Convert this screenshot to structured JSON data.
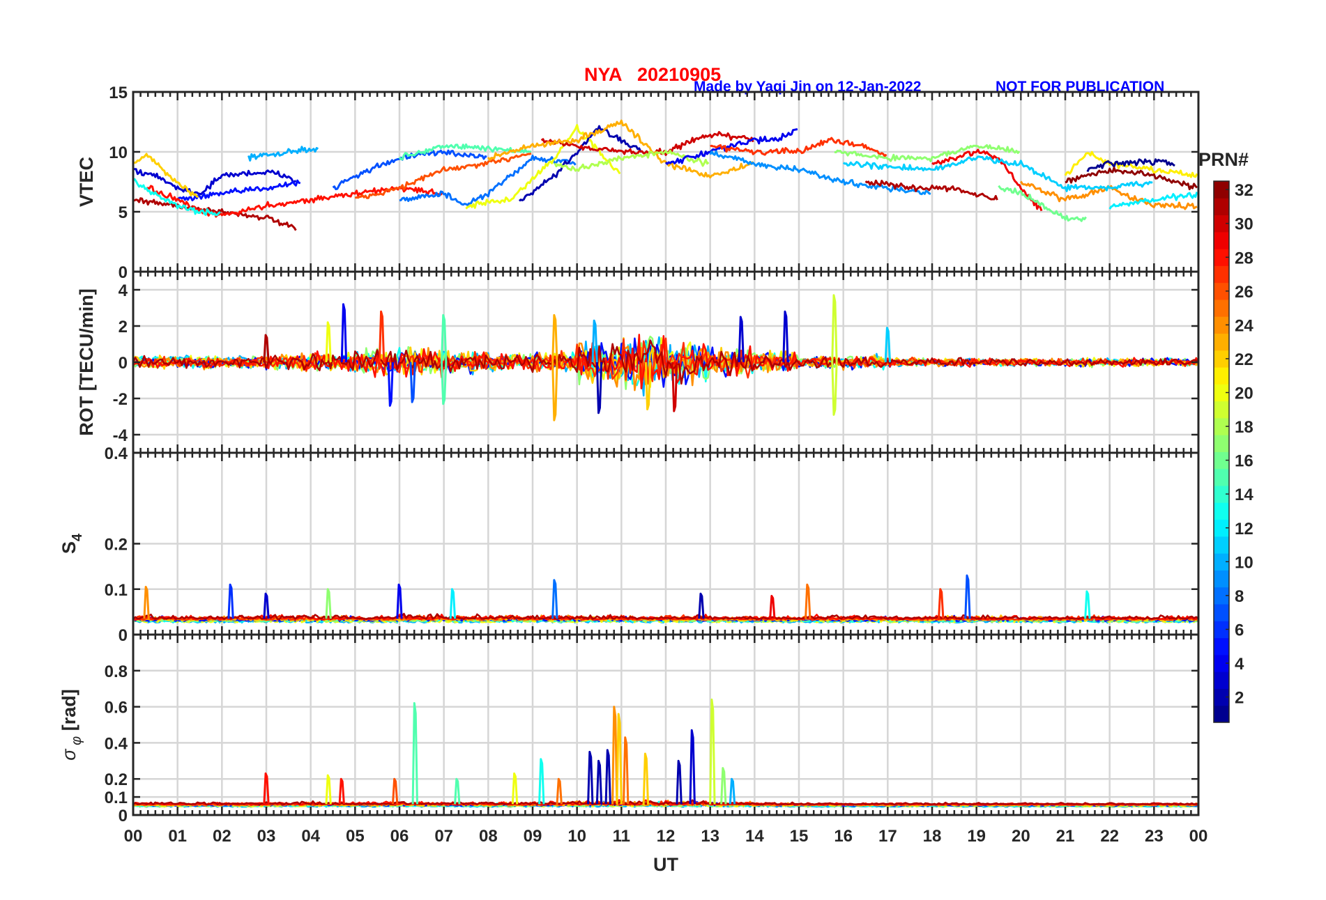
{
  "chart_data": {
    "type": "line",
    "title": "NYA   20210905",
    "credit": "Made by Yaqi Jin on 12-Jan-2022",
    "notice": "NOT FOR PUBLICATION",
    "xlabel": "UT",
    "xlim": [
      0,
      24
    ],
    "xticks": [
      "00",
      "01",
      "02",
      "03",
      "04",
      "05",
      "06",
      "07",
      "08",
      "09",
      "10",
      "11",
      "12",
      "13",
      "14",
      "15",
      "16",
      "17",
      "18",
      "19",
      "20",
      "21",
      "22",
      "23",
      "00"
    ],
    "grid": true,
    "colorbar": {
      "label": "PRN#",
      "range": [
        1,
        32
      ],
      "ticks": [
        2,
        4,
        6,
        8,
        10,
        12,
        14,
        16,
        18,
        20,
        22,
        24,
        26,
        28,
        30,
        32
      ],
      "colormap": "jet",
      "placement": "right"
    },
    "panels": [
      {
        "id": "vtec",
        "ylabel": "VTEC",
        "ylim": [
          0,
          15
        ],
        "yticks": [
          {
            "v": 0,
            "t": "0"
          },
          {
            "v": 5,
            "t": "5"
          },
          {
            "v": 10,
            "t": "10"
          },
          {
            "v": 15,
            "t": "15"
          }
        ],
        "series": [
          {
            "prn": 10,
            "x": [
              2.6,
              3,
              3.5,
              3.8,
              4.2
            ],
            "y": [
              9.6,
              9.7,
              10.0,
              10.2,
              10.1
            ]
          },
          {
            "prn": 3,
            "x": [
              0,
              0.5,
              1,
              1.5,
              2,
              2.5,
              3,
              3.5,
              3.7
            ],
            "y": [
              8.5,
              8,
              7,
              6.5,
              8,
              8.2,
              8.3,
              8,
              7.5
            ]
          },
          {
            "prn": 5,
            "x": [
              1,
              2,
              3,
              3.8
            ],
            "y": [
              6,
              6.5,
              7,
              7.5
            ]
          },
          {
            "prn": 31,
            "x": [
              0,
              1,
              2,
              3,
              3.7
            ],
            "y": [
              6,
              5.5,
              5,
              4.5,
              3.5
            ]
          },
          {
            "prn": 28,
            "x": [
              0.3,
              1,
              1.5,
              2,
              3,
              4,
              5,
              6,
              7
            ],
            "y": [
              7,
              6,
              5,
              4.7,
              5.5,
              6,
              6.5,
              7,
              6.5
            ]
          },
          {
            "prn": 22,
            "x": [
              0,
              0.3,
              0.8,
              1.5
            ],
            "y": [
              9,
              9.8,
              8,
              6
            ]
          },
          {
            "prn": 13,
            "x": [
              0,
              0.5,
              1,
              1.5,
              2
            ],
            "y": [
              7.5,
              6.5,
              5.5,
              5,
              4.8
            ]
          },
          {
            "prn": 7,
            "x": [
              4.5,
              5,
              6,
              7,
              8
            ],
            "y": [
              7,
              8,
              9.5,
              10,
              9.5
            ]
          },
          {
            "prn": 15,
            "x": [
              6,
              7,
              8,
              9
            ],
            "y": [
              9.5,
              10.5,
              10.3,
              10
            ]
          },
          {
            "prn": 26,
            "x": [
              5,
              6,
              7,
              8,
              9
            ],
            "y": [
              6,
              7,
              8.5,
              9,
              10
            ]
          },
          {
            "prn": 8,
            "x": [
              6,
              7,
              7.5,
              8,
              9,
              10
            ],
            "y": [
              6,
              6.5,
              5.5,
              6.5,
              9.5,
              9
            ]
          },
          {
            "prn": 20,
            "x": [
              7.5,
              8.5,
              9.5,
              10,
              11
            ],
            "y": [
              5.5,
              6,
              9.5,
              12,
              8
            ]
          },
          {
            "prn": 2,
            "x": [
              8.7,
              9.5,
              10,
              10.5,
              11,
              11.5
            ],
            "y": [
              5.8,
              8,
              10,
              12,
              11,
              10
            ]
          },
          {
            "prn": 30,
            "x": [
              9.2,
              10,
              11,
              12,
              13,
              14
            ],
            "y": [
              11,
              10.5,
              10,
              10,
              11.5,
              11
            ]
          },
          {
            "prn": 23,
            "x": [
              8,
              9,
              10,
              11,
              12,
              13,
              14
            ],
            "y": [
              9.5,
              10.5,
              11,
              12.5,
              9,
              8,
              9
            ]
          },
          {
            "prn": 18,
            "x": [
              9.5,
              10,
              11,
              12,
              13
            ],
            "y": [
              9,
              8.5,
              9.5,
              10,
              9
            ]
          },
          {
            "prn": 4,
            "x": [
              12,
              13,
              14,
              14.5,
              15
            ],
            "y": [
              9,
              10,
              11,
              11,
              12
            ]
          },
          {
            "prn": 27,
            "x": [
              13,
              14,
              15,
              15.7,
              16.5,
              17
            ],
            "y": [
              10.5,
              10,
              10,
              11,
              10.5,
              9.5
            ]
          },
          {
            "prn": 9,
            "x": [
              13,
              14,
              15,
              16,
              17,
              18
            ],
            "y": [
              10,
              9,
              8.5,
              7.5,
              7,
              6.5
            ]
          },
          {
            "prn": 17,
            "x": [
              15.8,
              17,
              18,
              19,
              20
            ],
            "y": [
              10,
              9.5,
              9.5,
              10.5,
              10
            ]
          },
          {
            "prn": 29,
            "x": [
              18,
              19,
              19.5,
              20,
              20.5
            ],
            "y": [
              9,
              10,
              9.5,
              7,
              5
            ]
          },
          {
            "prn": 31,
            "x": [
              16.5,
              17.5,
              18.5,
              19.5
            ],
            "y": [
              7.5,
              7,
              7,
              6
            ]
          },
          {
            "prn": 16,
            "x": [
              19.5,
              20,
              21,
              21.5
            ],
            "y": [
              7,
              6.5,
              4.5,
              4.3
            ]
          },
          {
            "prn": 21,
            "x": [
              21,
              21.5,
              22,
              23,
              24
            ],
            "y": [
              8,
              10,
              9,
              8.5,
              8
            ]
          },
          {
            "prn": 1,
            "x": [
              21.5,
              22,
              23,
              23.5
            ],
            "y": [
              8.5,
              9,
              9.2,
              9
            ]
          },
          {
            "prn": 32,
            "x": [
              21,
              22,
              23,
              24
            ],
            "y": [
              7.5,
              8.5,
              8,
              7
            ]
          },
          {
            "prn": 24,
            "x": [
              20,
              21,
              22,
              23,
              24
            ],
            "y": [
              7.5,
              6,
              7,
              5.5,
              5.5
            ]
          },
          {
            "prn": 12,
            "x": [
              22,
              23,
              24
            ],
            "y": [
              5.5,
              6,
              6.5
            ]
          },
          {
            "prn": 11,
            "x": [
              16,
              18,
              19,
              20,
              21,
              22,
              23
            ],
            "y": [
              9,
              8.5,
              9.5,
              9,
              7,
              7,
              7.5
            ]
          }
        ]
      },
      {
        "id": "rot",
        "ylabel": "ROT [TECU/min]",
        "ylim": [
          -5,
          5
        ],
        "yticks": [
          {
            "v": -4,
            "t": "-4"
          },
          {
            "v": -2,
            "t": "-2"
          },
          {
            "v": 0,
            "t": "0"
          },
          {
            "v": 2,
            "t": "2"
          },
          {
            "v": 4,
            "t": "4"
          }
        ],
        "baseline": 0,
        "hourly_amplitude": [
          0.5,
          0.5,
          0.4,
          0.6,
          0.7,
          1.0,
          1.0,
          0.8,
          0.6,
          0.7,
          1.5,
          2.0,
          1.5,
          1.0,
          0.8,
          0.4,
          0.5,
          0.3,
          0.3,
          0.3,
          0.3,
          0.3,
          0.3,
          0.3
        ],
        "spikes": [
          {
            "x": 4.75,
            "y": 3.2,
            "prn": 4
          },
          {
            "x": 5.6,
            "y": 2.8,
            "prn": 27
          },
          {
            "x": 9.5,
            "y": 2.6,
            "prn": 23
          },
          {
            "x": 9.5,
            "y": -3.2,
            "prn": 23
          },
          {
            "x": 10.5,
            "y": -2.8,
            "prn": 2
          },
          {
            "x": 15.8,
            "y": 3.7,
            "prn": 19
          },
          {
            "x": 15.8,
            "y": -2.9,
            "prn": 19
          },
          {
            "x": 14.7,
            "y": 2.8,
            "prn": 3
          },
          {
            "x": 4.4,
            "y": 2.2,
            "prn": 20
          },
          {
            "x": 6.3,
            "y": -2.2,
            "prn": 7
          },
          {
            "x": 12.2,
            "y": -2.7,
            "prn": 30
          },
          {
            "x": 17,
            "y": 1.9,
            "prn": 11
          },
          {
            "x": 7,
            "y": 2.6,
            "prn": 15
          },
          {
            "x": 7,
            "y": -2.3,
            "prn": 15
          },
          {
            "x": 5.8,
            "y": -2.4,
            "prn": 5
          },
          {
            "x": 13.7,
            "y": 2.5,
            "prn": 3
          },
          {
            "x": 3,
            "y": 1.5,
            "prn": 31
          },
          {
            "x": 10.4,
            "y": 2.3,
            "prn": 10
          },
          {
            "x": 11.6,
            "y": -2.6,
            "prn": 22
          }
        ]
      },
      {
        "id": "s4",
        "ylabel": "S",
        "ylabel_sub": "4",
        "ylim": [
          0,
          0.4
        ],
        "yticks": [
          {
            "v": 0,
            "t": "0"
          },
          {
            "v": 0.1,
            "t": "0.1"
          },
          {
            "v": 0.2,
            "t": "0.2"
          },
          {
            "v": 0.4,
            "t": "0.4"
          }
        ],
        "baseline": 0.035,
        "hourly_amplitude": [
          0.015,
          0.012,
          0.015,
          0.018,
          0.015,
          0.012,
          0.018,
          0.015,
          0.015,
          0.018,
          0.015,
          0.015,
          0.015,
          0.012,
          0.012,
          0.015,
          0.015,
          0.012,
          0.015,
          0.015,
          0.012,
          0.015,
          0.012,
          0.012
        ],
        "spikes": [
          {
            "x": 2.2,
            "y": 0.11,
            "prn": 6
          },
          {
            "x": 6.0,
            "y": 0.11,
            "prn": 4
          },
          {
            "x": 9.5,
            "y": 0.12,
            "prn": 8
          },
          {
            "x": 15.2,
            "y": 0.11,
            "prn": 25
          },
          {
            "x": 18.8,
            "y": 0.13,
            "prn": 7
          },
          {
            "x": 18.2,
            "y": 0.1,
            "prn": 27
          },
          {
            "x": 0.3,
            "y": 0.105,
            "prn": 24
          },
          {
            "x": 21.5,
            "y": 0.095,
            "prn": 13
          },
          {
            "x": 7.2,
            "y": 0.1,
            "prn": 12
          },
          {
            "x": 12.8,
            "y": 0.09,
            "prn": 2
          },
          {
            "x": 4.4,
            "y": 0.1,
            "prn": 17
          },
          {
            "x": 3,
            "y": 0.09,
            "prn": 3
          },
          {
            "x": 14.4,
            "y": 0.085,
            "prn": 29
          }
        ]
      },
      {
        "id": "sigma_phi",
        "ylabel": "σ",
        "ylabel_sub": "φ",
        "ylabel_unit": "[rad]",
        "ylim": [
          0,
          1
        ],
        "yticks": [
          {
            "v": 0,
            "t": "0"
          },
          {
            "v": 0.1,
            "t": "0.1"
          },
          {
            "v": 0.2,
            "t": "0.2"
          },
          {
            "v": 0.4,
            "t": "0.4"
          },
          {
            "v": 0.6,
            "t": "0.6"
          },
          {
            "v": 0.8,
            "t": "0.8"
          }
        ],
        "baseline": 0.06,
        "hourly_amplitude": [
          0.02,
          0.02,
          0.02,
          0.025,
          0.025,
          0.025,
          0.025,
          0.025,
          0.025,
          0.03,
          0.04,
          0.04,
          0.035,
          0.03,
          0.02,
          0.015,
          0.015,
          0.015,
          0.015,
          0.015,
          0.015,
          0.015,
          0.015,
          0.015
        ],
        "spikes": [
          {
            "x": 6.35,
            "y": 0.62,
            "prn": 15
          },
          {
            "x": 10.85,
            "y": 0.6,
            "prn": 24
          },
          {
            "x": 10.95,
            "y": 0.56,
            "prn": 22
          },
          {
            "x": 11.1,
            "y": 0.43,
            "prn": 25
          },
          {
            "x": 12.6,
            "y": 0.47,
            "prn": 3
          },
          {
            "x": 13.05,
            "y": 0.64,
            "prn": 19
          },
          {
            "x": 11.55,
            "y": 0.34,
            "prn": 22
          },
          {
            "x": 10.3,
            "y": 0.35,
            "prn": 2
          },
          {
            "x": 10.7,
            "y": 0.36,
            "prn": 2
          },
          {
            "x": 9.2,
            "y": 0.31,
            "prn": 13
          },
          {
            "x": 8.6,
            "y": 0.23,
            "prn": 20
          },
          {
            "x": 3,
            "y": 0.23,
            "prn": 28
          },
          {
            "x": 4.4,
            "y": 0.22,
            "prn": 20
          },
          {
            "x": 13.3,
            "y": 0.26,
            "prn": 17
          },
          {
            "x": 12.3,
            "y": 0.3,
            "prn": 2
          },
          {
            "x": 9.6,
            "y": 0.2,
            "prn": 25
          },
          {
            "x": 4.7,
            "y": 0.2,
            "prn": 28
          },
          {
            "x": 7.3,
            "y": 0.2,
            "prn": 15
          },
          {
            "x": 5.9,
            "y": 0.2,
            "prn": 26
          },
          {
            "x": 10.5,
            "y": 0.3,
            "prn": 2
          },
          {
            "x": 13.5,
            "y": 0.2,
            "prn": 10
          }
        ]
      }
    ]
  }
}
